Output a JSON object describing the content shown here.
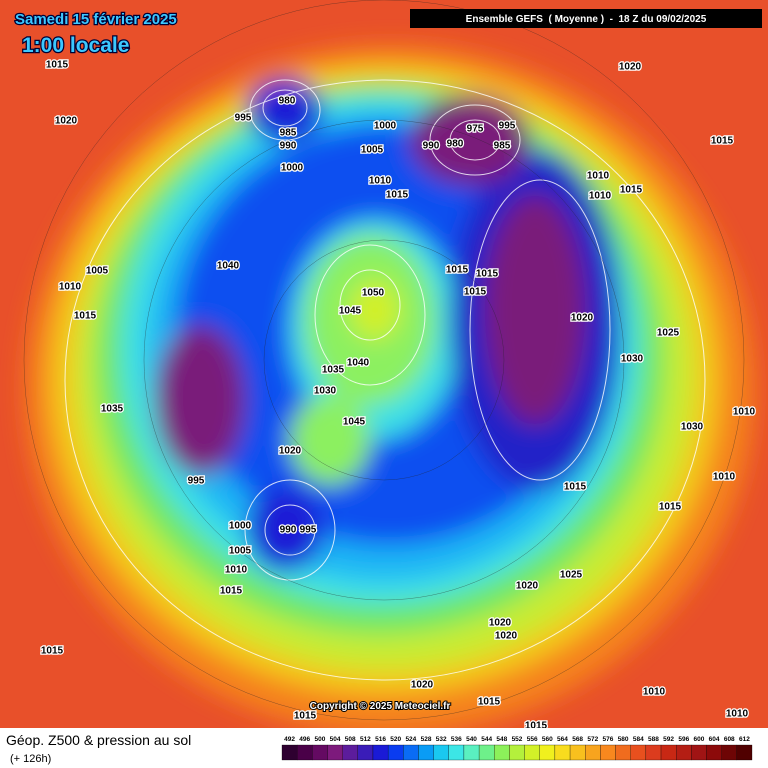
{
  "header": {
    "date": "Samedi 15 février 2025",
    "time": "1:00 locale",
    "model": "Ensemble GEFS  ( Moyenne )  -  18 Z du 09/02/2025"
  },
  "footer": {
    "title": "Géop. Z500 & pression au sol",
    "lead": "(+ 126h)",
    "copyright": "Copyright © 2025 Meteociel.fr"
  },
  "scale": {
    "labels": [
      492,
      496,
      500,
      504,
      508,
      512,
      516,
      520,
      524,
      528,
      532,
      536,
      540,
      544,
      548,
      552,
      556,
      560,
      564,
      568,
      572,
      576,
      580,
      584,
      588,
      592,
      596,
      600,
      604,
      608,
      612
    ],
    "colors": [
      "#2e0030",
      "#4a0048",
      "#640a62",
      "#7d1a7c",
      "#5c1c9c",
      "#3a1cb8",
      "#1a1ad6",
      "#0a3cf0",
      "#0a6cf5",
      "#0a9cf5",
      "#1ac8f0",
      "#3ce6e6",
      "#5af0c0",
      "#6ef08a",
      "#8cf05a",
      "#b4f03c",
      "#d2f028",
      "#f0f01e",
      "#f8dc1e",
      "#f8c01e",
      "#f8a41e",
      "#f8881e",
      "#f06c1e",
      "#e8501e",
      "#dc3c1e",
      "#c82814",
      "#b41e14",
      "#a01414",
      "#8c0a0a",
      "#6e0505",
      "#500000"
    ]
  },
  "isobars": [
    1015,
    1020,
    980,
    995,
    985,
    990,
    1000,
    1000,
    1005,
    1010,
    1015,
    975,
    995,
    980,
    990,
    985,
    1020,
    1015,
    1010,
    1015,
    1010,
    1040,
    1005,
    1010,
    1015,
    1050,
    1045,
    1015,
    1015,
    1015,
    1020,
    1025,
    1030,
    1040,
    1035,
    1030,
    1035,
    1010,
    1030,
    1045,
    1020,
    995,
    1010,
    1015,
    1015,
    990,
    995,
    1000,
    1005,
    1010,
    1015,
    1020,
    1025,
    1020,
    1020,
    1015,
    1020,
    1015,
    1015,
    1015,
    1010,
    1010
  ]
}
